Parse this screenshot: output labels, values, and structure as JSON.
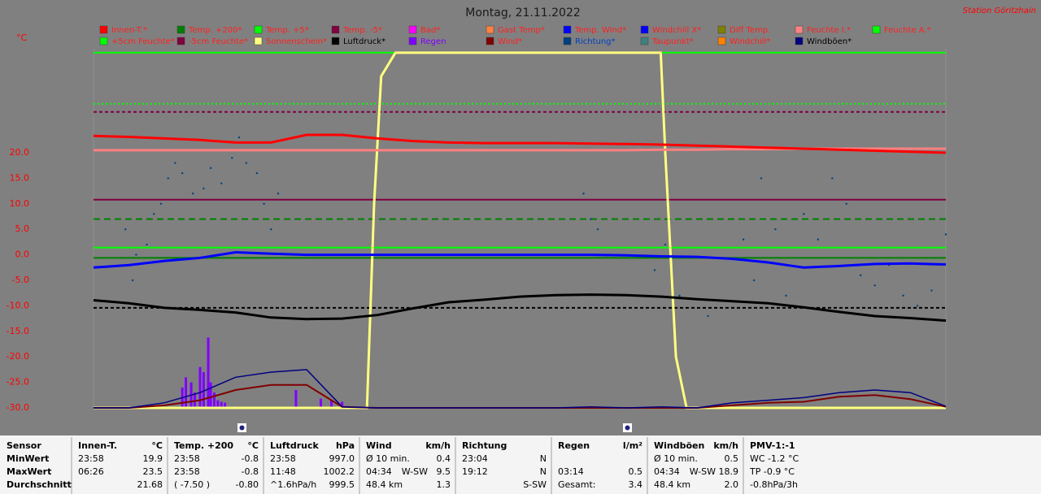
{
  "chart_data": {
    "type": "line",
    "title": "Montag, 21.11.2022",
    "station": "Station Göritzhain",
    "y_label": "°C",
    "xlim": [
      0,
      24
    ],
    "ylim": [
      -30,
      40
    ],
    "yticks": [
      {
        "value": 20,
        "label": "20.0"
      },
      {
        "value": 15,
        "label": "15.0"
      },
      {
        "value": 10,
        "label": "10.0"
      },
      {
        "value": 5,
        "label": "5.0"
      },
      {
        "value": 0,
        "label": "0.0"
      },
      {
        "value": -5,
        "label": "-5.0"
      },
      {
        "value": -10,
        "label": "-10.0"
      },
      {
        "value": -15,
        "label": "-15.0"
      },
      {
        "value": -20,
        "label": "-20.0"
      },
      {
        "value": -25,
        "label": "-25.0"
      },
      {
        "value": -30,
        "label": "-30.0"
      }
    ],
    "legend": [
      {
        "name": "Innen-T.*",
        "color": "#ff0000",
        "text_color": "#ff2020"
      },
      {
        "name": "Temp. +200*",
        "color": "#008000",
        "text_color": "#ff2020"
      },
      {
        "name": "Temp. +5*",
        "color": "#00ff00",
        "text_color": "#ff2020"
      },
      {
        "name": "Temp. -5*",
        "color": "#800040",
        "text_color": "#ff2020"
      },
      {
        "name": "Bad*",
        "color": "#ff00ff",
        "text_color": "#ff2020"
      },
      {
        "name": "Gast Temp*",
        "color": "#ff8040",
        "text_color": "#ff2020"
      },
      {
        "name": "Temp. Wind*",
        "color": "#0000ff",
        "text_color": "#ff2020"
      },
      {
        "name": "Windchill X*",
        "color": "#0000ff",
        "text_color": "#ff2020"
      },
      {
        "name": "Diff Temp.",
        "color": "#808000",
        "text_color": "#ff2020"
      },
      {
        "name": "Feuchte I.*",
        "color": "#ff8080",
        "text_color": "#ff2020"
      },
      {
        "name": "Feuchte A.*",
        "color": "#00ff00",
        "text_color": "#ff2020"
      },
      {
        "name": "+5cm Feuchte*",
        "color": "#00ff00",
        "text_color": "#ff2020"
      },
      {
        "name": "-5cm Feuchte*",
        "color": "#800040",
        "text_color": "#ff2020"
      },
      {
        "name": "Sonnenschein*",
        "color": "#ffff80",
        "text_color": "#ff2020"
      },
      {
        "name": "Luftdruck*",
        "color": "#000000",
        "text_color": "#000000"
      },
      {
        "name": "Regen",
        "color": "#8000ff",
        "text_color": "#8000ff"
      },
      {
        "name": "Wind*",
        "color": "#800000",
        "text_color": "#ff2020"
      },
      {
        "name": "Richtung*",
        "color": "#004080",
        "text_color": "#0040c0"
      },
      {
        "name": "Taupunkt*",
        "color": "#408080",
        "text_color": "#ff2020"
      },
      {
        "name": "Windchill*",
        "color": "#ff8000",
        "text_color": "#ff2020"
      },
      {
        "name": "Windböen*",
        "color": "#000080",
        "text_color": "#000000"
      }
    ],
    "reference_lines": [
      {
        "value": 39.6,
        "color": "#00ff00",
        "dash": "none"
      },
      {
        "value": 29.6,
        "color": "#00ff00",
        "dash": "2 3"
      },
      {
        "value": 28.0,
        "color": "#800040",
        "dash": "4 3"
      },
      {
        "value": 10.8,
        "color": "#800040",
        "dash": "none"
      },
      {
        "value": 7.0,
        "color": "#008000",
        "dash": "8 5"
      },
      {
        "value": 1.4,
        "color": "#00ff00",
        "dash": "none"
      },
      {
        "value": -0.6,
        "color": "#008000",
        "dash": "none"
      },
      {
        "value": -10.4,
        "color": "#000000",
        "dash": "4 3"
      }
    ],
    "x": [
      0,
      1,
      2,
      3,
      4,
      5,
      6,
      7,
      8,
      9,
      10,
      11,
      12,
      13,
      14,
      15,
      16,
      17,
      18,
      19,
      20,
      21,
      22,
      23,
      24
    ],
    "series": [
      {
        "legend": 9,
        "width": 3,
        "values": [
          20.5,
          20.5,
          20.5,
          20.5,
          20.5,
          20.5,
          20.5,
          20.5,
          20.5,
          20.5,
          20.5,
          20.5,
          20.5,
          20.5,
          20.5,
          20.5,
          20.6,
          20.6,
          20.7,
          20.7,
          20.8,
          20.8,
          20.8,
          20.8,
          20.8
        ]
      },
      {
        "legend": 0,
        "width": 3,
        "values": [
          23.3,
          23.1,
          22.8,
          22.5,
          22.0,
          22.0,
          23.5,
          23.5,
          22.8,
          22.3,
          22.0,
          21.9,
          21.9,
          21.9,
          21.8,
          21.7,
          21.6,
          21.4,
          21.2,
          21.0,
          20.8,
          20.6,
          20.4,
          20.2,
          20.0
        ]
      },
      {
        "legend": 14,
        "width": 3,
        "values": [
          -8.9,
          -9.5,
          -10.4,
          -10.8,
          -11.3,
          -12.3,
          -12.6,
          -12.5,
          -11.8,
          -10.5,
          -9.3,
          -8.8,
          -8.2,
          -7.9,
          -7.8,
          -7.9,
          -8.2,
          -8.7,
          -9.1,
          -9.5,
          -10.3,
          -11.2,
          -12.0,
          -12.4,
          -12.9
        ]
      },
      {
        "legend": 6,
        "width": 3,
        "values": [
          -2.5,
          -2.0,
          -1.2,
          -0.6,
          0.5,
          0.2,
          0.0,
          0.0,
          0.0,
          0.0,
          0.0,
          0.0,
          0.0,
          0.0,
          0.0,
          -0.1,
          -0.3,
          -0.4,
          -0.8,
          -1.5,
          -2.5,
          -2.2,
          -1.8,
          -1.7,
          -1.9
        ]
      },
      {
        "legend": 16,
        "width": 2,
        "values": [
          -30,
          -30,
          -29.5,
          -28.5,
          -26.5,
          -25.5,
          -25.5,
          -29.8,
          -30,
          -30,
          -30,
          -30,
          -30,
          -30,
          -30,
          -30,
          -30,
          -30,
          -29.5,
          -29,
          -28.8,
          -27.8,
          -27.5,
          -28.3,
          -29.8
        ]
      },
      {
        "legend": 20,
        "width": 1.5,
        "values": [
          -30,
          -30,
          -29,
          -27,
          -24,
          -23,
          -22.5,
          -29.8,
          -30,
          -30,
          -30,
          -30,
          -30,
          -30,
          -29.8,
          -30,
          -29.8,
          -30,
          -29,
          -28.5,
          -28,
          -27,
          -26.5,
          -27,
          -29.7
        ]
      }
    ],
    "sunshine": {
      "legend": 13,
      "x": [
        0,
        7.7,
        7.9,
        8.1,
        8.5,
        15.97,
        16.1,
        16.4,
        16.7,
        24
      ],
      "values": [
        -30,
        -30,
        10,
        35,
        39.6,
        39.6,
        20,
        -20,
        -30,
        -30
      ]
    },
    "rain": {
      "legend": 15,
      "x": [
        2.5,
        2.6,
        2.75,
        2.85,
        3.0,
        3.1,
        3.23,
        3.3,
        3.4,
        3.5,
        3.6,
        3.7,
        5.7,
        6.4,
        6.7,
        7.0
      ],
      "values": [
        -26,
        -24,
        -25,
        -27,
        -22,
        -23,
        -16.2,
        -25,
        -27,
        -28.5,
        -28.8,
        -29,
        -26.5,
        -28.2,
        -28.5,
        -28.8
      ]
    },
    "direction": {
      "legend": 17,
      "x": [
        0.9,
        1.1,
        1.2,
        1.5,
        1.7,
        1.9,
        2.1,
        2.3,
        2.5,
        2.8,
        3.1,
        3.3,
        3.6,
        3.9,
        4.1,
        4.3,
        4.6,
        4.8,
        5.0,
        5.2,
        13.8,
        14.0,
        14.2,
        15.8,
        16.1,
        16.5,
        17.3,
        18.3,
        18.6,
        18.8,
        19.2,
        19.5,
        20.0,
        20.4,
        20.8,
        21.2,
        21.6,
        22.0,
        22.4,
        22.8,
        23.2,
        23.6,
        24.0
      ],
      "values": [
        5,
        -5,
        0,
        2,
        8,
        10,
        15,
        18,
        16,
        12,
        13,
        17,
        14,
        19,
        23,
        18,
        16,
        10,
        5,
        12,
        12,
        7,
        5,
        -3,
        2,
        -8,
        -12,
        3,
        -5,
        15,
        5,
        -8,
        8,
        3,
        15,
        10,
        -4,
        -6,
        -2,
        -8,
        -10,
        -7,
        4
      ]
    }
  },
  "table": {
    "columns": [
      {
        "head": [
          "Sensor"
        ],
        "rows": [
          [
            "MinWert"
          ],
          [
            "MaxWert"
          ],
          [
            "Durchschnitt"
          ]
        ]
      },
      {
        "head": [
          "Innen-T.",
          "°C"
        ],
        "rows": [
          [
            "23:58",
            "19.9"
          ],
          [
            "06:26",
            "23.5"
          ],
          [
            "21.68"
          ]
        ]
      },
      {
        "head": [
          "Temp. +200",
          "°C"
        ],
        "rows": [
          [
            "23:58",
            "-0.8"
          ],
          [
            "23:58",
            "-0.8"
          ],
          [
            "( -7.50 )",
            "-0.80"
          ]
        ]
      },
      {
        "head": [
          "Luftdruck",
          "hPa"
        ],
        "rows": [
          [
            "23:58",
            "997.0"
          ],
          [
            "11:48",
            "1002.2"
          ],
          [
            "^1.6hPa/h",
            "999.5"
          ]
        ]
      },
      {
        "head": [
          "Wind",
          "km/h"
        ],
        "rows": [
          [
            "Ø 10 min.",
            "0.4"
          ],
          [
            "04:34",
            "W-SW",
            "9.5"
          ],
          [
            "48.4 km",
            "1.3"
          ]
        ]
      },
      {
        "head": [
          "Richtung"
        ],
        "rows": [
          [
            "23:04",
            "N"
          ],
          [
            "19:12",
            "N"
          ],
          [
            "S-SW"
          ]
        ]
      },
      {
        "head": [
          "Regen",
          "l/m²"
        ],
        "rows": [
          [],
          [
            "03:14",
            "0.5"
          ],
          [
            "Gesamt:",
            "3.4"
          ]
        ]
      },
      {
        "head": [
          "Windböen",
          "km/h"
        ],
        "rows": [
          [
            "Ø 10 min.",
            "0.5"
          ],
          [
            "04:34",
            "W-SW",
            "18.9"
          ],
          [
            "48.4 km",
            "2.0"
          ]
        ]
      },
      {
        "head": [
          "PMV-1:-1"
        ],
        "rows": [
          [
            "WC -1.2 °C"
          ],
          [
            "TP -0.9 °C"
          ],
          [
            "-0.8hPa/3h"
          ]
        ]
      }
    ]
  }
}
